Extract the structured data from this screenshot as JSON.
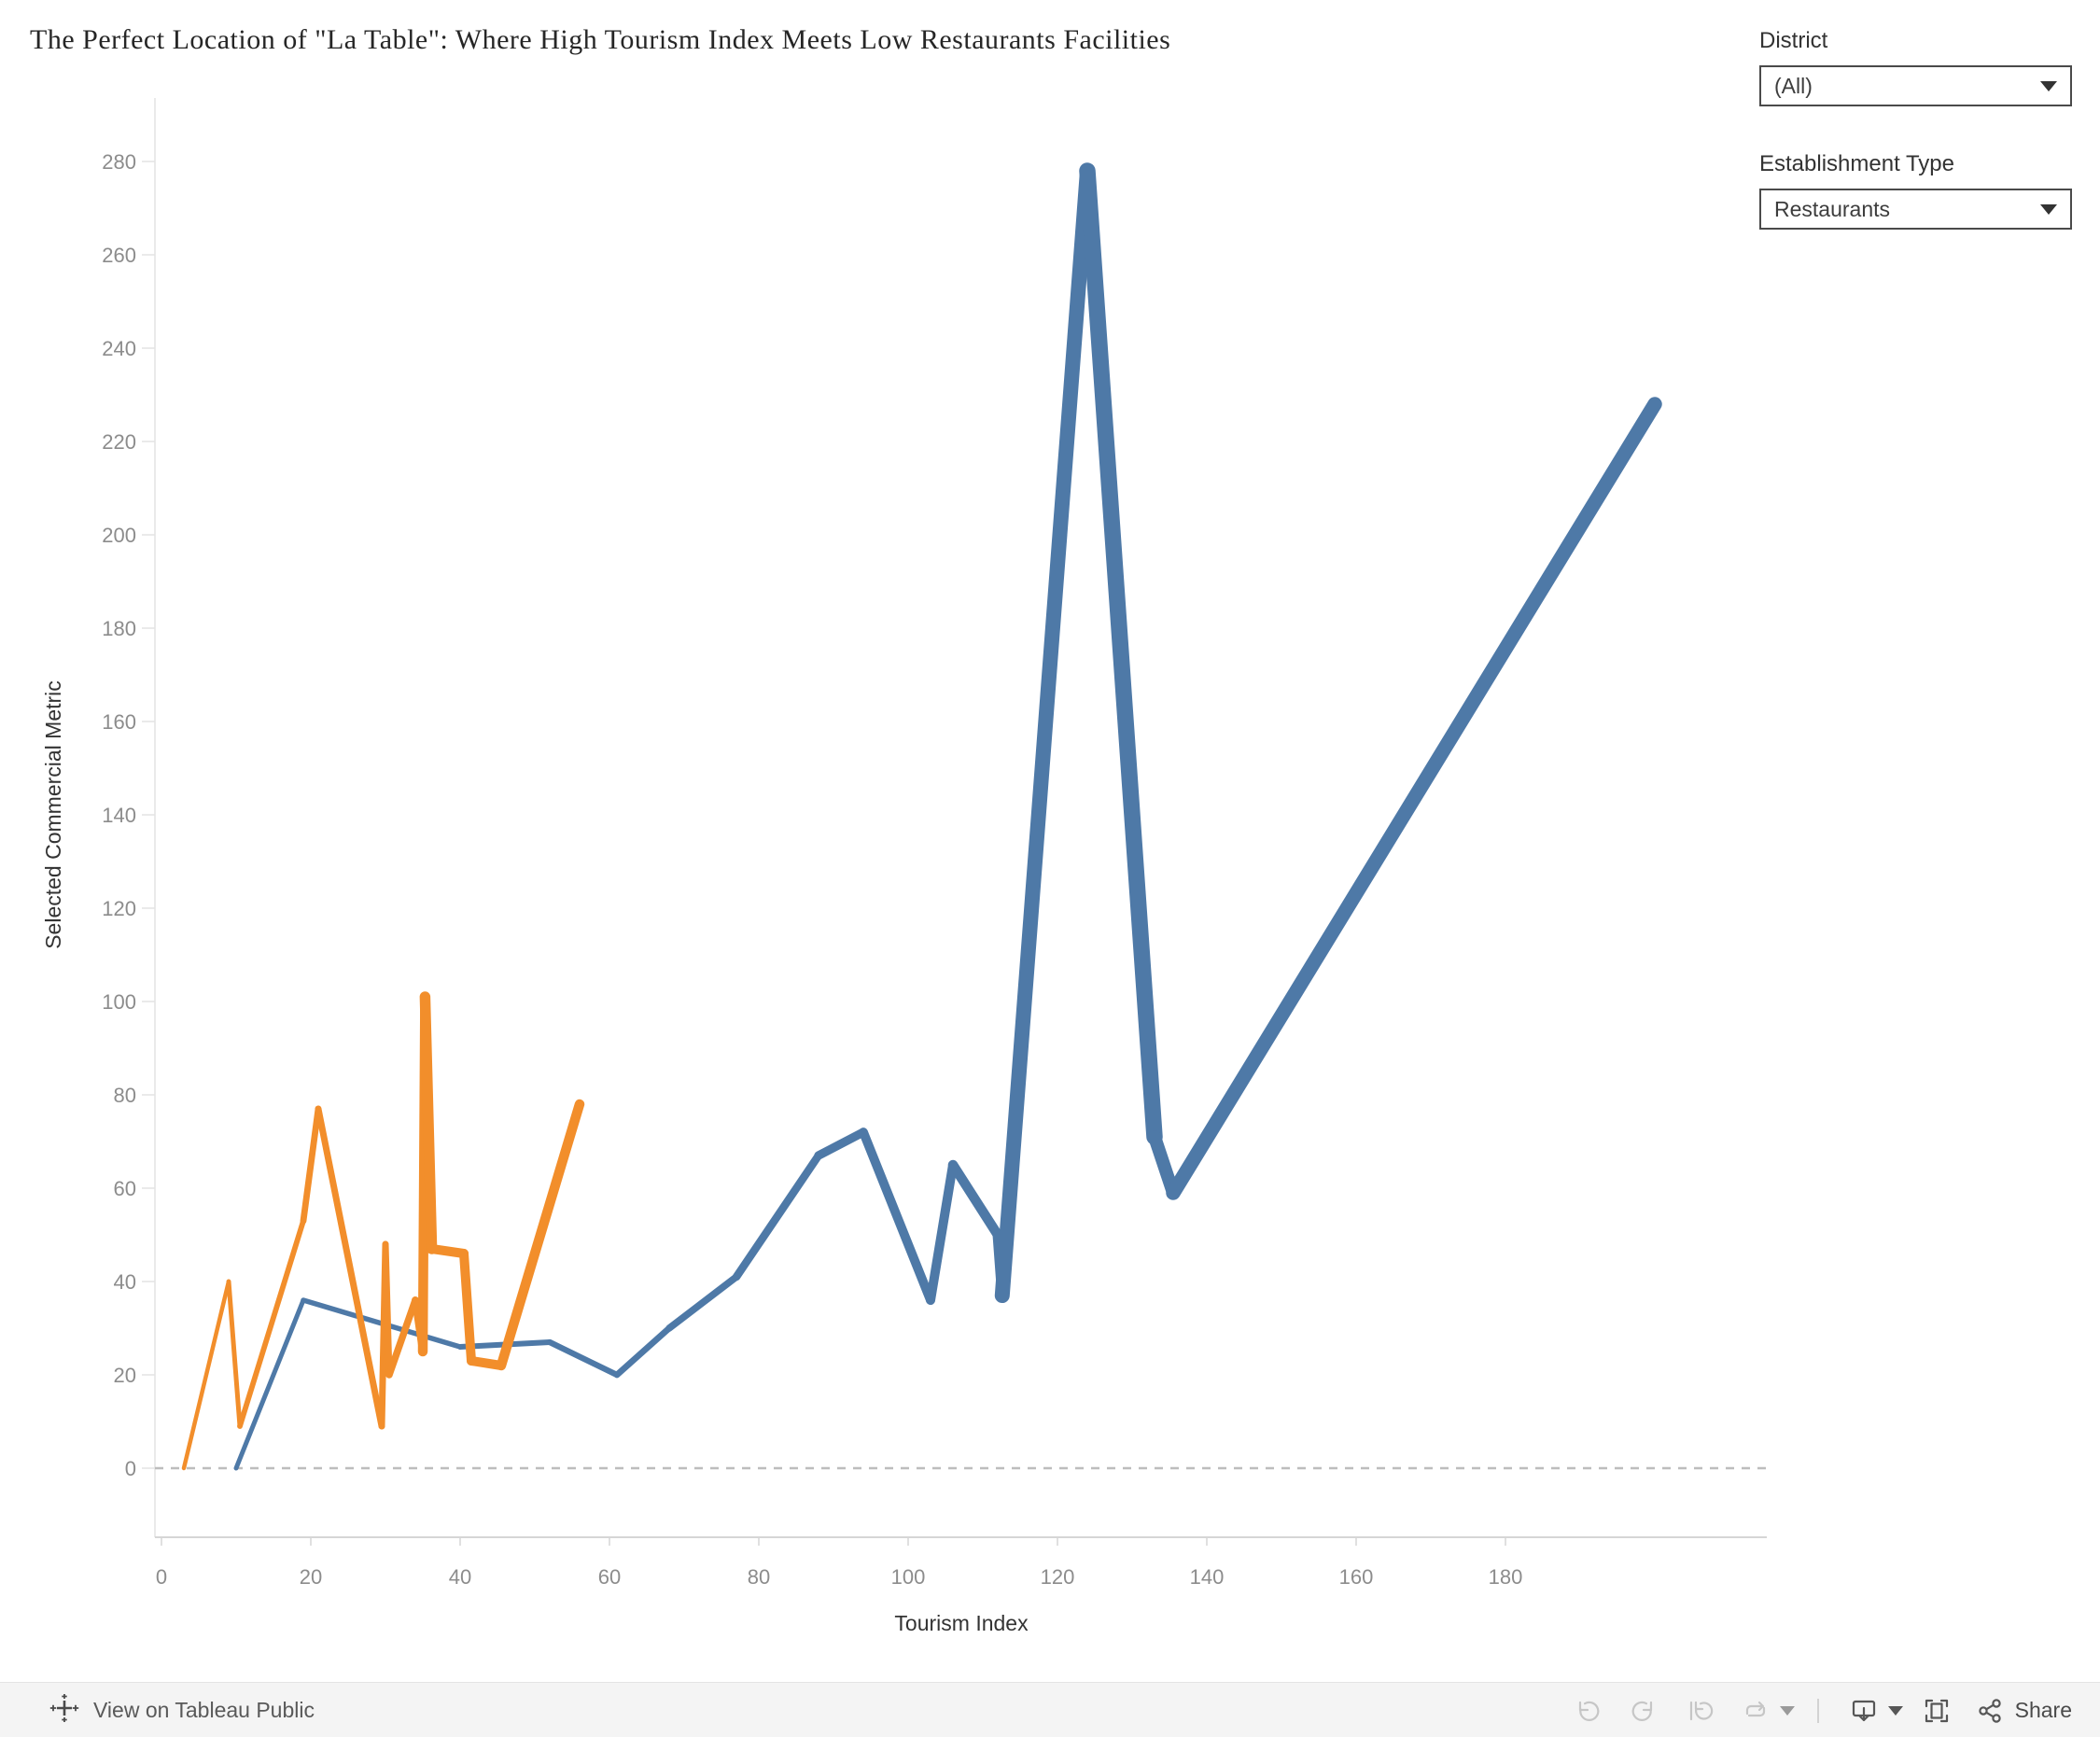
{
  "filters": {
    "district": {
      "label": "District",
      "value": "(All)"
    },
    "establishment_type": {
      "label": "Establishment Type",
      "value": "Restaurants"
    }
  },
  "toolbar": {
    "view_on_tableau_label": "View on Tableau Public",
    "share_label": "Share",
    "icons": [
      "tableau-logo-icon",
      "undo-icon",
      "redo-icon",
      "revert-icon",
      "refresh-icon",
      "caret-down-icon",
      "download-icon",
      "caret-down-icon",
      "fullscreen-icon",
      "share-icon"
    ]
  },
  "chart_data": {
    "type": "line",
    "title": "The Perfect Location of \"La Table\": Where High Tourism Index Meets Low Restaurants Facilities",
    "xlabel": "Tourism Index",
    "ylabel": "Selected Commercial Metric",
    "xlim": [
      0,
      215
    ],
    "ylim": [
      -15,
      294
    ],
    "x_ticks": [
      0,
      20,
      40,
      60,
      80,
      100,
      120,
      140,
      160,
      180
    ],
    "y_ticks": [
      0,
      20,
      40,
      60,
      80,
      100,
      120,
      140,
      160,
      180,
      200,
      220,
      240,
      260,
      280
    ],
    "grid": false,
    "zero_line": true,
    "legend_position": "none",
    "note": "each point is [x, y, stroke_width]; stroke width grows along the line (size encoding)",
    "series": [
      {
        "name": "blue-line",
        "color": "#4e79a7",
        "points": [
          [
            10,
            0,
            5
          ],
          [
            19,
            36,
            5
          ],
          [
            40,
            26,
            6
          ],
          [
            52,
            27,
            6
          ],
          [
            61,
            20,
            6.5
          ],
          [
            68,
            30,
            7
          ],
          [
            77,
            41,
            8
          ],
          [
            88,
            67,
            9
          ],
          [
            94,
            72,
            9.5
          ],
          [
            103,
            36,
            10
          ],
          [
            106,
            65,
            10
          ],
          [
            112,
            50,
            11
          ],
          [
            112.6,
            37,
            11
          ],
          [
            124,
            278,
            21
          ],
          [
            133,
            71,
            14
          ],
          [
            135.5,
            59,
            14
          ],
          [
            200,
            228,
            17
          ]
        ]
      },
      {
        "name": "orange-line",
        "color": "#f28e2b",
        "points": [
          [
            3,
            0,
            4
          ],
          [
            9,
            40,
            5
          ],
          [
            10.5,
            9,
            5
          ],
          [
            19,
            53,
            6.5
          ],
          [
            21,
            77,
            7
          ],
          [
            29.5,
            9,
            7
          ],
          [
            30,
            48,
            7
          ],
          [
            30.5,
            20,
            7
          ],
          [
            34,
            36,
            8
          ],
          [
            35,
            25,
            8
          ],
          [
            35.3,
            101,
            13
          ],
          [
            36.2,
            47,
            10
          ],
          [
            40.5,
            46,
            10
          ],
          [
            41.5,
            23,
            10
          ],
          [
            45.5,
            22,
            10
          ],
          [
            56,
            78,
            11
          ]
        ]
      }
    ],
    "axis_colors": {
      "tick_label": "#8c8c8c",
      "axis_line": "#d6d6d6",
      "zero_line": "#bdbdbd"
    }
  }
}
